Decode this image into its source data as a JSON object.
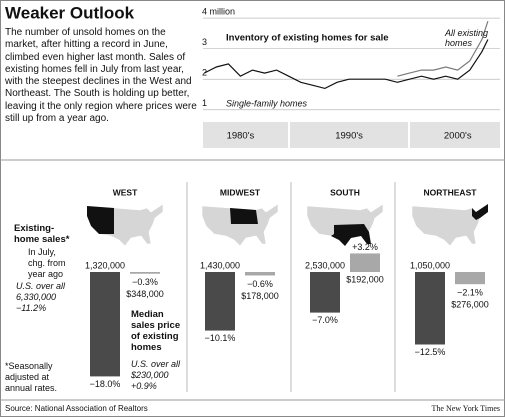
{
  "title": "Weaker Outlook",
  "intro": "The number of unsold homes on the market, after hitting a record in June, climbed even higher last month. Sales of existing homes fell in July from last year, with the steepest declines in the West and Northeast. The South is holding up better, leaving it the only region where prices were still up from a year ago.",
  "chart_data": [
    {
      "type": "line",
      "title": "Inventory of existing homes for sale",
      "x": [
        1983,
        1984,
        1985,
        1986,
        1987,
        1988,
        1989,
        1990,
        1991,
        1992,
        1993,
        1994,
        1995,
        1996,
        1997,
        1998,
        1999,
        2000,
        2001,
        2002,
        2003,
        2004,
        2005,
        2006,
        2006.5
      ],
      "xlim": [
        1982.9,
        2007.5
      ],
      "xticks": [
        {
          "value": 1986,
          "label": "1980's"
        },
        {
          "value": 1995,
          "label": "1990's"
        },
        {
          "value": 2004,
          "label": "2000's"
        }
      ],
      "ylim": [
        0.6,
        4.2
      ],
      "yticks": [
        {
          "value": 4,
          "label": "4 million"
        },
        3,
        2,
        1
      ],
      "grid": true,
      "series": [
        {
          "name": "Single-family homes",
          "color": "#111111",
          "values": [
            2.2,
            2.4,
            2.5,
            2.1,
            2.3,
            2.2,
            2.3,
            2.1,
            1.9,
            1.8,
            1.7,
            1.9,
            2.0,
            2.0,
            2.0,
            2.0,
            1.9,
            2.0,
            2.1,
            2.0,
            2.1,
            2.0,
            2.3,
            2.9,
            3.3
          ]
        },
        {
          "name": "All existing homes",
          "color": "#7a7a7a",
          "values": [
            null,
            null,
            null,
            null,
            null,
            null,
            null,
            null,
            null,
            null,
            null,
            null,
            null,
            null,
            null,
            null,
            2.1,
            2.2,
            2.3,
            2.3,
            2.4,
            2.3,
            2.6,
            3.3,
            3.9
          ]
        }
      ]
    },
    {
      "type": "bar",
      "categories": [
        "WEST",
        "MIDWEST",
        "SOUTH",
        "NORTHEAST"
      ],
      "ylim": [
        -18.5,
        5
      ],
      "series": [
        {
          "name": "Existing-home sales*",
          "note": "In July, chg. from year ago",
          "color": "#4a4a4a",
          "values": [
            -18.0,
            -10.1,
            -7.0,
            -12.5
          ],
          "value_labels": [
            "−18.0%",
            "−10.1%",
            "−7.0%",
            "−12.5%"
          ],
          "level_labels": [
            "1,320,000",
            "1,430,000",
            "2,530,000",
            "1,050,000"
          ],
          "us_label": "U.S. over all",
          "us_level_label": "6,330,000",
          "us_change_label": "−11.2%"
        },
        {
          "name": "Median sales price of existing homes",
          "color": "#a8a8a8",
          "values": [
            -0.3,
            -0.6,
            3.2,
            -2.1
          ],
          "value_labels": [
            "−0.3%",
            "−0.6%",
            "+3.2%",
            "−2.1%"
          ],
          "level_labels": [
            "$348,000",
            "$178,000",
            "$192,000",
            "$276,000"
          ],
          "us_label": "U.S. over all",
          "us_level_label": "$230,000",
          "us_change_label": "+0.9%"
        }
      ],
      "footnote": "*Seasonally adjusted at annual rates."
    }
  ],
  "source": "Source: National Association of Realtors",
  "credit": "The New York Times"
}
